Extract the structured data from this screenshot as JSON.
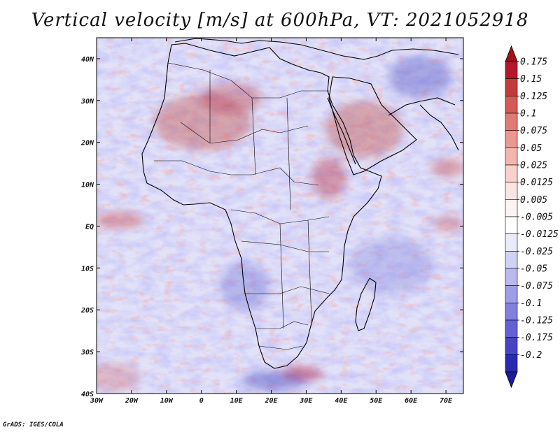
{
  "title": "Vertical velocity [m/s] at 600hPa, VT: 2021052918",
  "map": {
    "region": "Africa and surrounding oceans",
    "lon_range": [
      -30,
      75
    ],
    "lat_range": [
      -40,
      45
    ],
    "x_ticks": [
      {
        "lon": -30,
        "label": "30W"
      },
      {
        "lon": -20,
        "label": "20W"
      },
      {
        "lon": -10,
        "label": "10W"
      },
      {
        "lon": 0,
        "label": "0"
      },
      {
        "lon": 10,
        "label": "10E"
      },
      {
        "lon": 20,
        "label": "20E"
      },
      {
        "lon": 30,
        "label": "30E"
      },
      {
        "lon": 40,
        "label": "40E"
      },
      {
        "lon": 50,
        "label": "50E"
      },
      {
        "lon": 60,
        "label": "60E"
      },
      {
        "lon": 70,
        "label": "70E"
      }
    ],
    "y_ticks": [
      {
        "lat": 40,
        "label": "40N"
      },
      {
        "lat": 30,
        "label": "30N"
      },
      {
        "lat": 20,
        "label": "20N"
      },
      {
        "lat": 10,
        "label": "10N"
      },
      {
        "lat": 0,
        "label": "EQ"
      },
      {
        "lat": -10,
        "label": "10S"
      },
      {
        "lat": -20,
        "label": "20S"
      },
      {
        "lat": -30,
        "label": "30S"
      },
      {
        "lat": -40,
        "label": "40S"
      }
    ]
  },
  "colorbar": {
    "levels": [
      {
        "label": "0.175",
        "color": "#b2182b"
      },
      {
        "label": "0.15",
        "color": "#c23a3c"
      },
      {
        "label": "0.125",
        "color": "#d45a57"
      },
      {
        "label": "0.1",
        "color": "#e07a74"
      },
      {
        "label": "0.075",
        "color": "#eb9892"
      },
      {
        "label": "0.05",
        "color": "#f3b5b0"
      },
      {
        "label": "0.025",
        "color": "#f9d0cc"
      },
      {
        "label": "0.0125",
        "color": "#fce4e2"
      },
      {
        "label": "0.005",
        "color": "#fff3f2"
      },
      {
        "label": "-0.005",
        "color": "#ffffff"
      },
      {
        "label": "-0.0125",
        "color": "#eaeafb"
      },
      {
        "label": "-0.025",
        "color": "#d2d2f6"
      },
      {
        "label": "-0.05",
        "color": "#b9b9ef"
      },
      {
        "label": "-0.075",
        "color": "#9d9de8"
      },
      {
        "label": "-0.1",
        "color": "#8080df"
      },
      {
        "label": "-0.125",
        "color": "#6262d4"
      },
      {
        "label": "-0.175",
        "color": "#4444c4"
      },
      {
        "label": "-0.2",
        "color": "#2a2ab0"
      }
    ],
    "top_end_color": "#a50f15",
    "bottom_end_color": "#1a1a9c"
  },
  "credit": "GrADS: IGES/COLA"
}
